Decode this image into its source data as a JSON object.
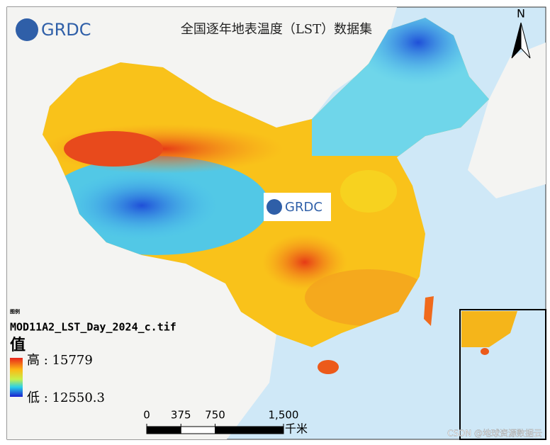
{
  "header": {
    "logo": "GRDC",
    "title": "全国逐年地表温度（LST）数据集",
    "north": "N"
  },
  "center_logo": "GRDC",
  "legend": {
    "heading": "图例",
    "layer": "MOD11A2_LST_Day_2024_c.tif",
    "field": "值",
    "separator": ":",
    "high": {
      "label": "高",
      "value": 15779
    },
    "low": {
      "label": "低",
      "value": 12550.3
    }
  },
  "scale_bar": {
    "ticks": [
      0,
      375,
      750,
      {
        "value": 1500,
        "label": "1,500"
      }
    ],
    "unit": "千米"
  },
  "watermark": "CSDN @地球资源数据云"
}
